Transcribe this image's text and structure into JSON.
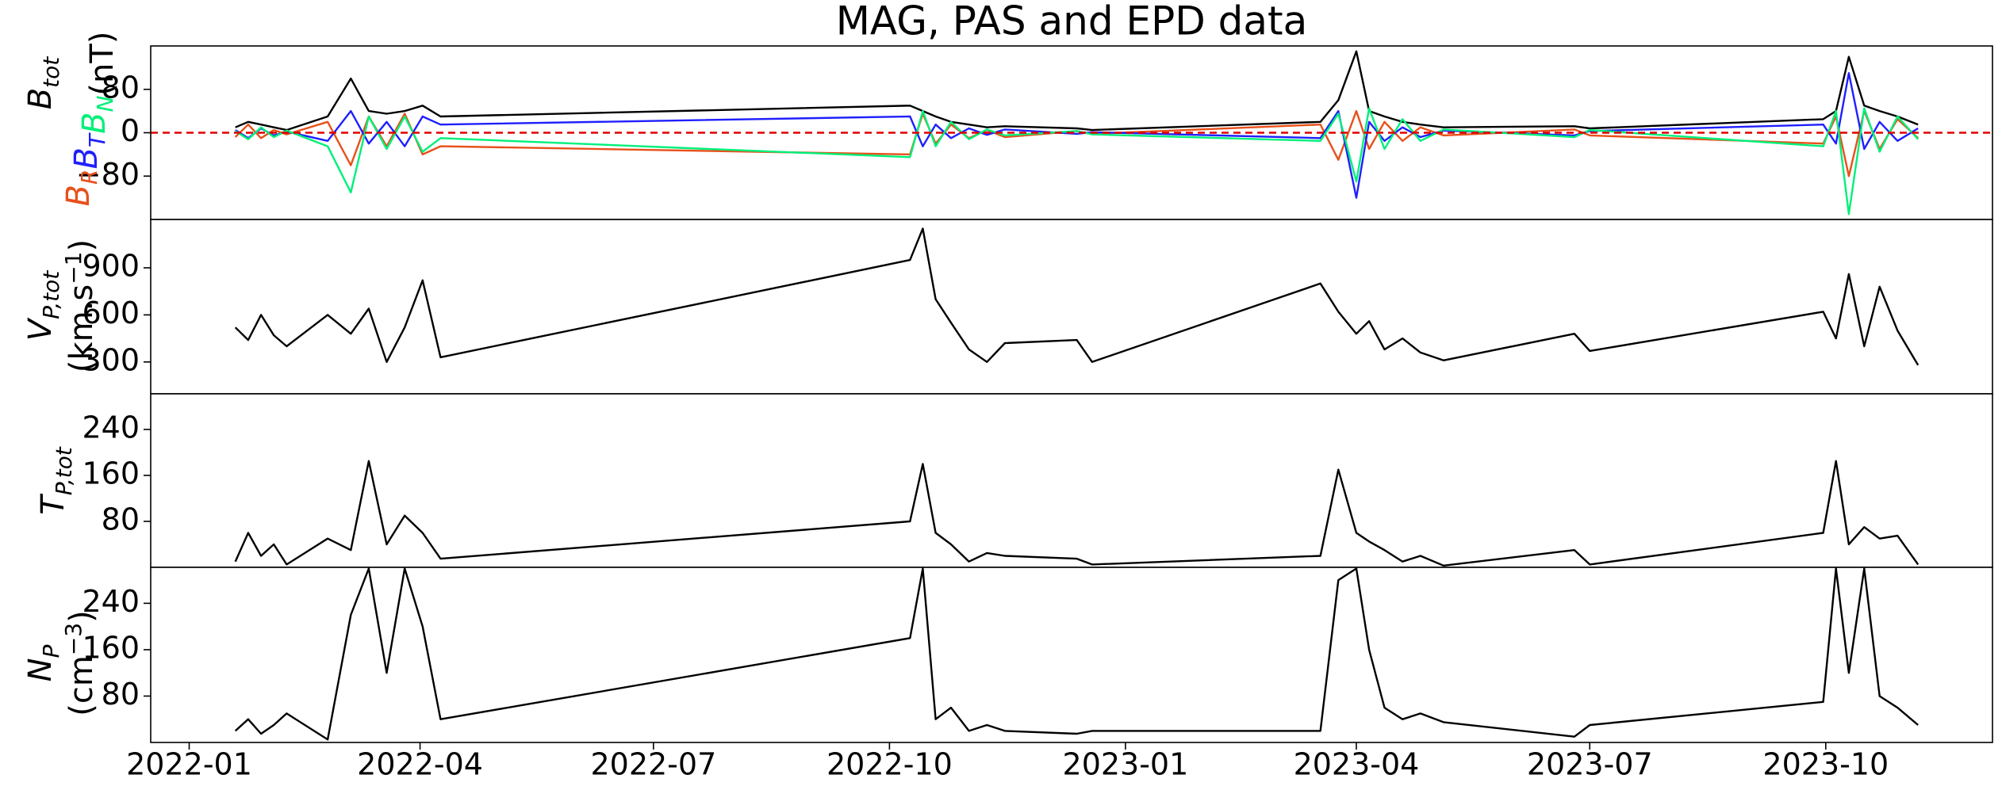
{
  "chart_data": [
    {
      "type": "line",
      "title": "MAG, PAS and EPD data",
      "ylabel": {
        "symbol": "B",
        "subscript": "tot"
      },
      "yunit": [
        "(nT)"
      ],
      "xlim": [
        "2021-12-17",
        "2023-12-05"
      ],
      "ylim": [
        -160,
        160
      ],
      "yticks": [
        {
          "value": -80,
          "label": "−80"
        },
        0,
        80
      ],
      "hline": {
        "value": 0,
        "color": "#e00000"
      },
      "x": [
        "2022-01-19",
        "2022-01-24",
        "2022-01-29",
        "2022-02-03",
        "2022-02-08",
        "2022-02-24",
        "2022-03-05",
        "2022-03-12",
        "2022-03-19",
        "2022-03-26",
        "2022-04-02",
        "2022-04-09",
        "2022-10-09",
        "2022-10-14",
        "2022-10-19",
        "2022-10-25",
        "2022-11-01",
        "2022-11-08",
        "2022-11-15",
        "2022-12-13",
        "2022-12-19",
        "2023-03-18",
        "2023-03-25",
        "2023-04-01",
        "2023-04-06",
        "2023-04-12",
        "2023-04-19",
        "2023-04-26",
        "2023-05-05",
        "2023-06-25",
        "2023-07-01",
        "2023-09-30",
        "2023-10-05",
        "2023-10-10",
        "2023-10-16",
        "2023-10-22",
        "2023-10-29",
        "2023-11-06"
      ],
      "series": [
        {
          "color": "#000000",
          "values": [
            10,
            20,
            15,
            10,
            5,
            30,
            100,
            40,
            35,
            40,
            50,
            30,
            50,
            40,
            30,
            20,
            15,
            10,
            12,
            8,
            5,
            20,
            60,
            150,
            40,
            30,
            20,
            15,
            10,
            12,
            8,
            25,
            40,
            140,
            50,
            40,
            30,
            15
          ]
        },
        {
          "name": "B",
          "subscript": "R",
          "color": "#e8501a",
          "values": [
            -8,
            15,
            -10,
            5,
            -3,
            20,
            -60,
            30,
            -25,
            35,
            -40,
            -25,
            -40,
            35,
            -20,
            15,
            -10,
            5,
            -8,
            3,
            -2,
            15,
            -50,
            40,
            -30,
            20,
            -15,
            10,
            -5,
            6,
            -5,
            -20,
            30,
            -80,
            40,
            -30,
            25,
            -10
          ]
        },
        {
          "name": "B",
          "subscript": "T",
          "color": "#1f1fff",
          "values": [
            5,
            -10,
            8,
            -5,
            2,
            -15,
            40,
            -20,
            20,
            -25,
            30,
            15,
            30,
            -25,
            15,
            -10,
            8,
            -4,
            6,
            -2,
            1,
            -10,
            40,
            -120,
            20,
            -15,
            10,
            -8,
            4,
            -5,
            3,
            15,
            -20,
            110,
            -30,
            20,
            -15,
            8
          ]
        },
        {
          "name": "B",
          "subscript": "N",
          "color": "#00f07a",
          "values": [
            3,
            -12,
            10,
            -8,
            4,
            -25,
            -110,
            30,
            -30,
            30,
            -35,
            -10,
            -45,
            40,
            -25,
            20,
            -12,
            6,
            -5,
            3,
            -3,
            -15,
            35,
            -90,
            45,
            -30,
            25,
            -15,
            6,
            -8,
            5,
            -25,
            40,
            -150,
            45,
            -35,
            30,
            -12
          ]
        }
      ]
    },
    {
      "type": "line",
      "ylabel": {
        "symbol": "V",
        "subscript": "P,tot"
      },
      "yunit": [
        "(km.s",
        "−1",
        ")"
      ],
      "xlim": [
        "2021-12-17",
        "2023-12-05"
      ],
      "ylim": [
        97,
        1208
      ],
      "yticks": [
        300,
        600,
        900
      ],
      "x": [
        "2022-01-19",
        "2022-01-24",
        "2022-01-29",
        "2022-02-03",
        "2022-02-08",
        "2022-02-24",
        "2022-03-05",
        "2022-03-12",
        "2022-03-19",
        "2022-03-26",
        "2022-04-02",
        "2022-04-09",
        "2022-10-09",
        "2022-10-14",
        "2022-10-19",
        "2022-10-25",
        "2022-11-01",
        "2022-11-08",
        "2022-11-15",
        "2022-12-13",
        "2022-12-19",
        "2023-03-18",
        "2023-03-25",
        "2023-04-01",
        "2023-04-06",
        "2023-04-12",
        "2023-04-19",
        "2023-04-26",
        "2023-05-05",
        "2023-06-25",
        "2023-07-01",
        "2023-09-30",
        "2023-10-05",
        "2023-10-10",
        "2023-10-16",
        "2023-10-22",
        "2023-10-29",
        "2023-11-06"
      ],
      "series": [
        {
          "color": "#000000",
          "values": [
            520,
            440,
            600,
            470,
            400,
            600,
            480,
            640,
            300,
            520,
            820,
            330,
            950,
            1150,
            700,
            550,
            380,
            300,
            420,
            440,
            300,
            800,
            620,
            480,
            560,
            380,
            450,
            360,
            310,
            480,
            370,
            620,
            450,
            860,
            400,
            780,
            500,
            280
          ]
        }
      ]
    },
    {
      "type": "line",
      "ylabel": {
        "symbol": "T",
        "subscript": "P,tot"
      },
      "xlim": [
        "2021-12-17",
        "2023-12-05"
      ],
      "ylim": [
        0,
        302
      ],
      "yticks": [
        80,
        160,
        240
      ],
      "x": [
        "2022-01-19",
        "2022-01-24",
        "2022-01-29",
        "2022-02-03",
        "2022-02-08",
        "2022-02-24",
        "2022-03-05",
        "2022-03-12",
        "2022-03-19",
        "2022-03-26",
        "2022-04-02",
        "2022-04-09",
        "2022-10-09",
        "2022-10-14",
        "2022-10-19",
        "2022-10-25",
        "2022-11-01",
        "2022-11-08",
        "2022-11-15",
        "2022-12-13",
        "2022-12-19",
        "2023-03-18",
        "2023-03-25",
        "2023-04-01",
        "2023-04-06",
        "2023-04-12",
        "2023-04-19",
        "2023-04-26",
        "2023-05-05",
        "2023-06-25",
        "2023-07-01",
        "2023-09-30",
        "2023-10-05",
        "2023-10-10",
        "2023-10-16",
        "2023-10-22",
        "2023-10-29",
        "2023-11-06"
      ],
      "series": [
        {
          "color": "#000000",
          "values": [
            10,
            60,
            20,
            40,
            5,
            50,
            30,
            185,
            40,
            90,
            60,
            15,
            80,
            180,
            60,
            40,
            10,
            25,
            20,
            15,
            5,
            20,
            170,
            60,
            45,
            30,
            10,
            20,
            3,
            30,
            5,
            60,
            185,
            40,
            70,
            50,
            55,
            5
          ]
        }
      ]
    },
    {
      "type": "line",
      "ylabel": {
        "symbol": "N",
        "subscript": "P"
      },
      "yunit": [
        "(cm",
        "−3",
        ")"
      ],
      "xlim": [
        "2021-12-17",
        "2023-12-05"
      ],
      "ylim": [
        0,
        302
      ],
      "yticks": [
        80,
        160,
        240
      ],
      "xticks": [
        {
          "value": "2022-01-01",
          "label": "2022-01"
        },
        {
          "value": "2022-04-01",
          "label": "2022-04"
        },
        {
          "value": "2022-07-01",
          "label": "2022-07"
        },
        {
          "value": "2022-10-01",
          "label": "2022-10"
        },
        {
          "value": "2023-01-01",
          "label": "2023-01"
        },
        {
          "value": "2023-04-01",
          "label": "2023-04"
        },
        {
          "value": "2023-07-01",
          "label": "2023-07"
        },
        {
          "value": "2023-10-01",
          "label": "2023-10"
        }
      ],
      "x": [
        "2022-01-19",
        "2022-01-24",
        "2022-01-29",
        "2022-02-03",
        "2022-02-08",
        "2022-02-24",
        "2022-03-05",
        "2022-03-12",
        "2022-03-19",
        "2022-03-26",
        "2022-04-02",
        "2022-04-09",
        "2022-10-09",
        "2022-10-14",
        "2022-10-19",
        "2022-10-25",
        "2022-11-01",
        "2022-11-08",
        "2022-11-15",
        "2022-12-13",
        "2022-12-19",
        "2023-03-18",
        "2023-03-25",
        "2023-04-01",
        "2023-04-06",
        "2023-04-12",
        "2023-04-19",
        "2023-04-26",
        "2023-05-05",
        "2023-06-25",
        "2023-07-01",
        "2023-09-30",
        "2023-10-05",
        "2023-10-10",
        "2023-10-16",
        "2023-10-22",
        "2023-10-29",
        "2023-11-06"
      ],
      "series": [
        {
          "color": "#000000",
          "values": [
            20,
            40,
            15,
            30,
            50,
            5,
            220,
            300,
            120,
            300,
            200,
            40,
            180,
            300,
            40,
            60,
            20,
            30,
            20,
            15,
            20,
            20,
            280,
            300,
            160,
            60,
            40,
            50,
            35,
            10,
            30,
            70,
            300,
            120,
            300,
            80,
            60,
            30
          ]
        }
      ]
    }
  ]
}
